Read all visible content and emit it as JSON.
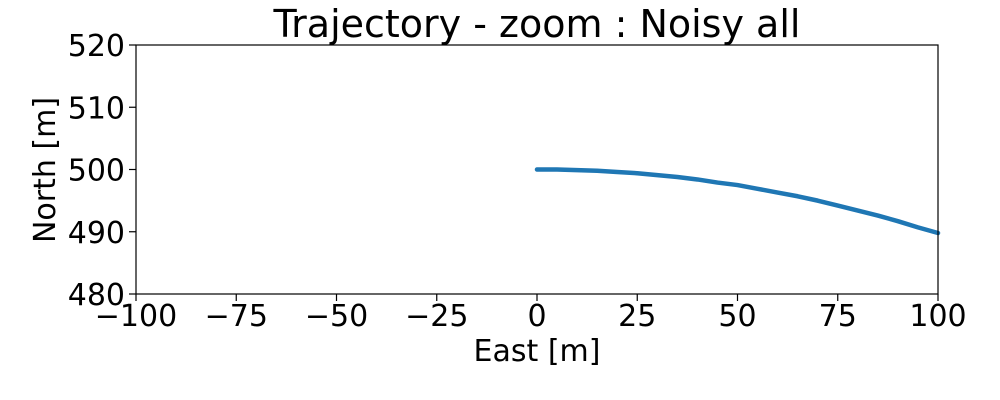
{
  "chart_data": {
    "type": "line",
    "title": "Trajectory - zoom : Noisy all",
    "xlabel": "East [m]",
    "ylabel": "North [m]",
    "xlim": [
      -100,
      100
    ],
    "ylim": [
      480,
      520
    ],
    "xticks": [
      -100,
      -75,
      -50,
      -25,
      0,
      25,
      50,
      75,
      100
    ],
    "xtick_labels": [
      "−100",
      "−75",
      "−50",
      "−25",
      "0",
      "25",
      "50",
      "75",
      "100"
    ],
    "yticks": [
      480,
      490,
      500,
      510,
      520
    ],
    "ytick_labels": [
      "480",
      "490",
      "500",
      "510",
      "520"
    ],
    "grid": false,
    "series": [
      {
        "color": "#1f77b4",
        "x": [
          0,
          5,
          10,
          15,
          20,
          25,
          30,
          35,
          40,
          45,
          50,
          55,
          60,
          65,
          70,
          75,
          80,
          85,
          90,
          95,
          100
        ],
        "y": [
          500.0,
          500.0,
          499.9,
          499.8,
          499.6,
          499.4,
          499.1,
          498.8,
          498.4,
          497.9,
          497.5,
          496.9,
          496.3,
          495.7,
          495.0,
          494.2,
          493.4,
          492.6,
          491.7,
          490.7,
          489.8
        ]
      }
    ]
  }
}
